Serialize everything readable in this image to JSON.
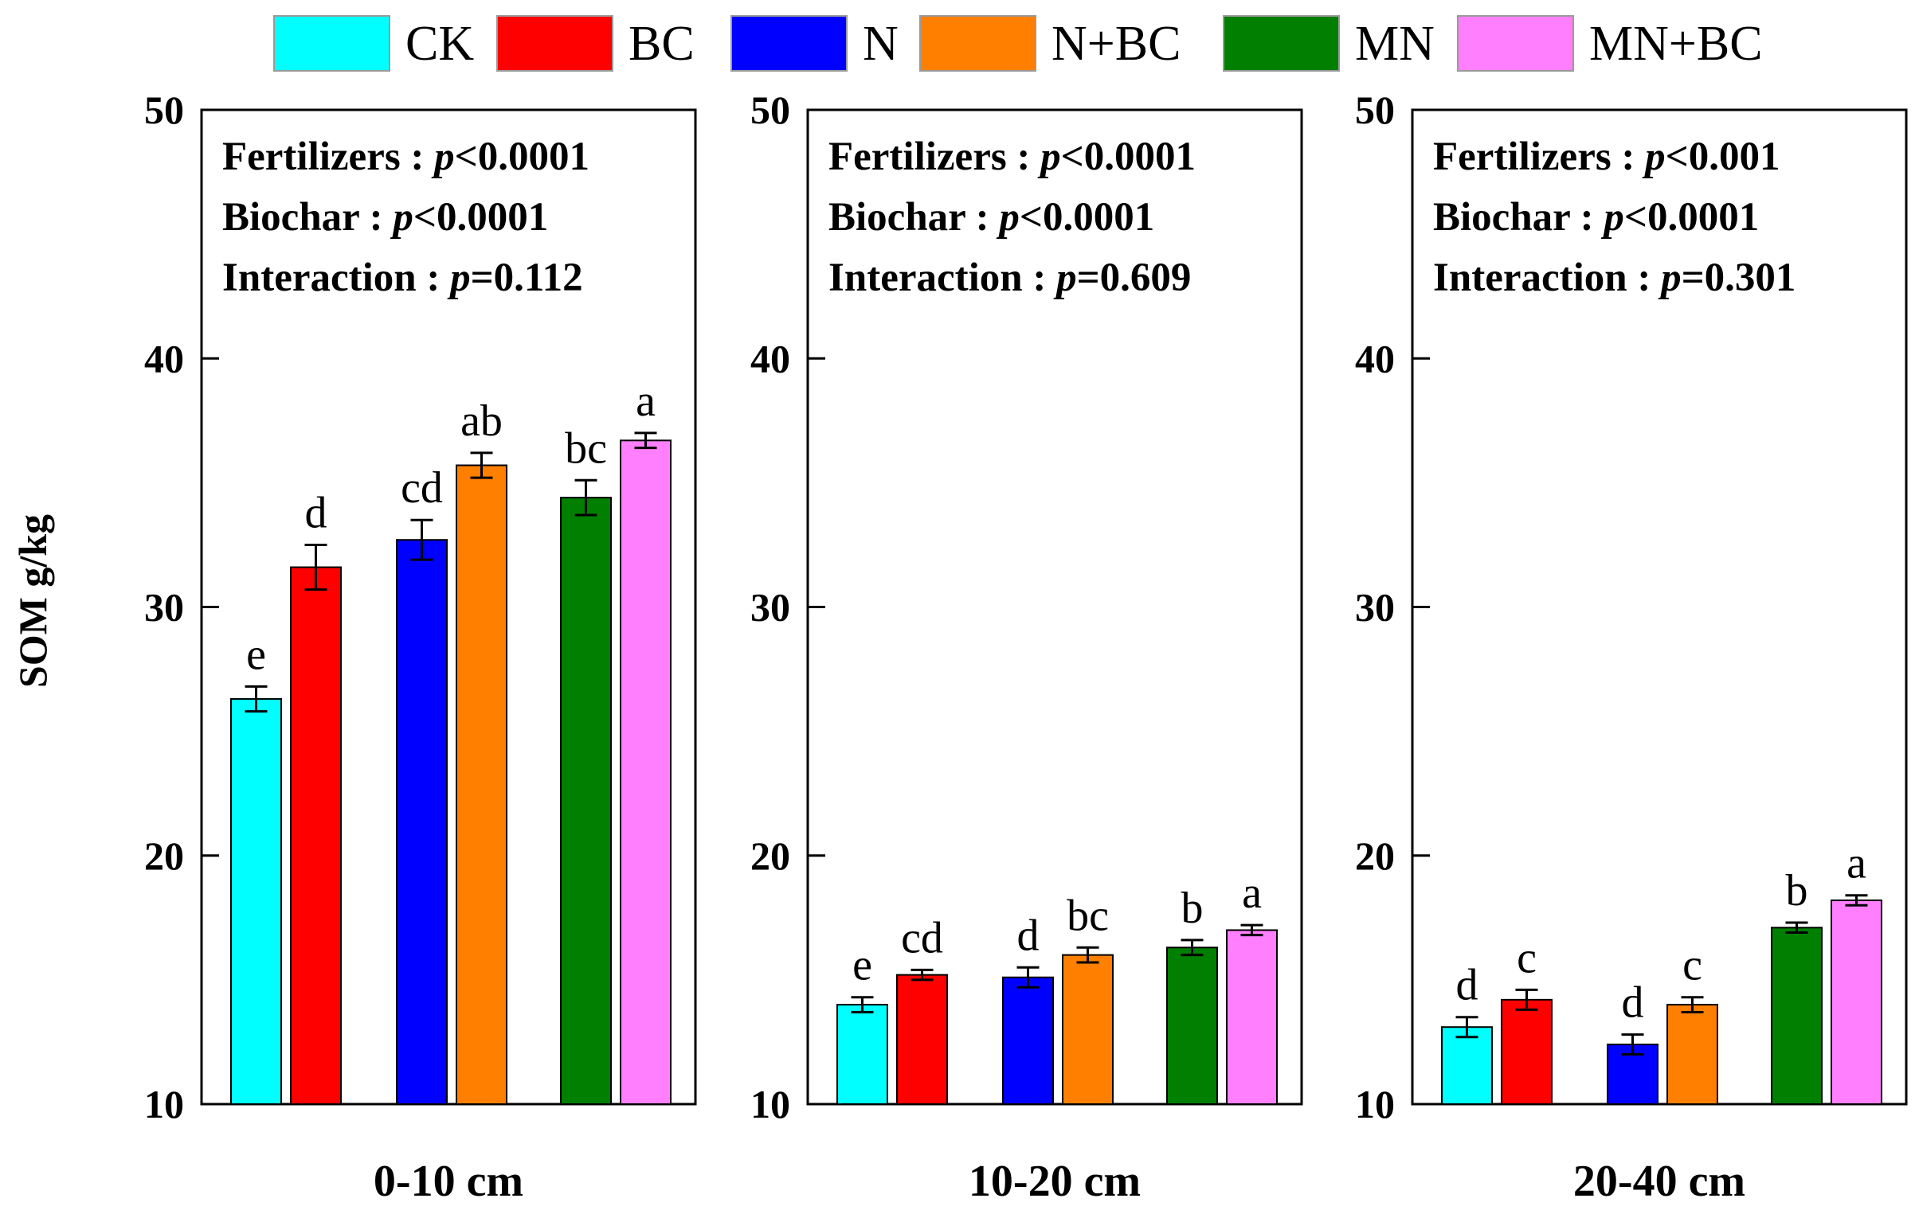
{
  "chart_data": {
    "type": "bar",
    "ylabel": "SOM g/kg",
    "ylim": [
      10,
      50
    ],
    "yticks": [
      "10",
      "20",
      "30",
      "40",
      "50"
    ],
    "legend_position": "top",
    "series": [
      {
        "name": "CK",
        "color": "#00FFFF"
      },
      {
        "name": "BC",
        "color": "#FF0000"
      },
      {
        "name": "N",
        "color": "#0000FF"
      },
      {
        "name": "N+BC",
        "color": "#FF7F00"
      },
      {
        "name": "MN",
        "color": "#007F00"
      },
      {
        "name": "MN+BC",
        "color": "#FF7FFF"
      }
    ],
    "panels": [
      {
        "xlabel": "0-10 cm",
        "values": [
          26.3,
          31.6,
          32.7,
          35.7,
          34.4,
          36.7
        ],
        "errors": [
          0.5,
          0.9,
          0.8,
          0.5,
          0.7,
          0.3
        ],
        "letters": [
          "e",
          "d",
          "cd",
          "ab",
          "bc",
          "a"
        ],
        "stats": [
          {
            "label": "Fertilizers : ",
            "p": "p",
            "rel": "<",
            "value": "0.0001"
          },
          {
            "label": "Biochar : ",
            "p": "p",
            "rel": "<",
            "value": "0.0001"
          },
          {
            "label": "Interaction : ",
            "p": "p",
            "rel": "=",
            "value": "0.112"
          }
        ]
      },
      {
        "xlabel": "10-20 cm",
        "values": [
          14.0,
          15.2,
          15.1,
          16.0,
          16.3,
          17.0
        ],
        "errors": [
          0.3,
          0.2,
          0.4,
          0.3,
          0.3,
          0.2
        ],
        "letters": [
          "e",
          "cd",
          "d",
          "bc",
          "b",
          "a"
        ],
        "stats": [
          {
            "label": "Fertilizers : ",
            "p": "p",
            "rel": "<",
            "value": "0.0001"
          },
          {
            "label": "Biochar : ",
            "p": "p",
            "rel": "<",
            "value": "0.0001"
          },
          {
            "label": "Interaction : ",
            "p": "p",
            "rel": "=",
            "value": "0.609"
          }
        ]
      },
      {
        "xlabel": "20-40 cm",
        "values": [
          13.1,
          14.2,
          12.4,
          14.0,
          17.1,
          18.2
        ],
        "errors": [
          0.4,
          0.4,
          0.4,
          0.3,
          0.2,
          0.2
        ],
        "letters": [
          "d",
          "c",
          "d",
          "c",
          "b",
          "a"
        ],
        "stats": [
          {
            "label": "Fertilizers : ",
            "p": "p",
            "rel": "<",
            "value": "0.001"
          },
          {
            "label": "Biochar : ",
            "p": "p",
            "rel": "<",
            "value": "0.0001"
          },
          {
            "label": "Interaction : ",
            "p": "p",
            "rel": "=",
            "value": "0.301"
          }
        ]
      }
    ]
  }
}
